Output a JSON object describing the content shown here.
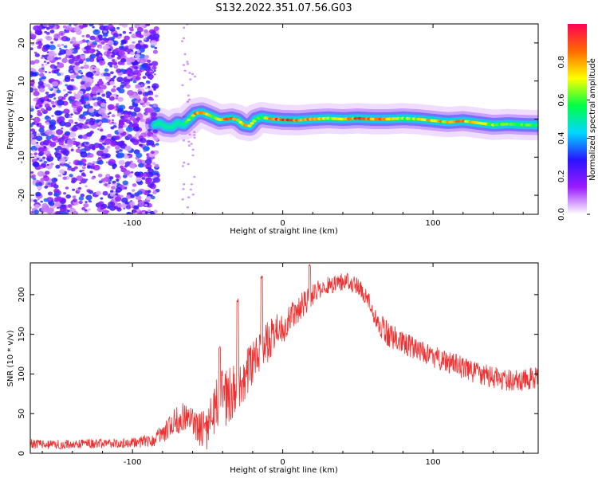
{
  "title": "S132.2022.351.07.56.G03",
  "chart_data": [
    {
      "type": "heatmap",
      "xlabel": "Height of straight line (km)",
      "ylabel": "Frequency (Hz)",
      "xlim": [
        -168,
        170
      ],
      "ylim": [
        -25,
        25
      ],
      "xticks": [
        -100,
        0,
        100
      ],
      "yticks": [
        -20,
        -10,
        0,
        10,
        20
      ],
      "colorbar": {
        "label": "Normalized spectral amplitude",
        "range": [
          0,
          1
        ],
        "ticks": [
          "0.0",
          "0.2",
          "0.4",
          "0.6",
          "0.8"
        ],
        "colors": [
          "#ffffff",
          "#9b1bff",
          "#2a14ff",
          "#00d8ff",
          "#00ff44",
          "#fcff00",
          "#ff6a00",
          "#ff0055"
        ]
      },
      "noise_region_x": [
        -168,
        -85
      ],
      "sparse_noise_x": [
        -67,
        -58
      ],
      "ridge": {
        "x": [
          -85,
          -82,
          -78,
          -74,
          -70,
          -66,
          -62,
          -58,
          -54,
          -50,
          -46,
          -42,
          -38,
          -34,
          -30,
          -26,
          -22,
          -18,
          -14,
          -10,
          -5,
          0,
          10,
          20,
          30,
          40,
          50,
          60,
          70,
          80,
          90,
          100,
          110,
          120,
          130,
          140,
          150,
          160,
          170
        ],
        "y": [
          -1.5,
          -1.0,
          -2.0,
          -2.2,
          -1.0,
          -1.5,
          0.0,
          1.5,
          1.8,
          1.2,
          0.5,
          -0.2,
          0.0,
          0.2,
          -0.2,
          -1.5,
          -1.8,
          0.0,
          0.5,
          0.2,
          0.0,
          -0.2,
          -0.3,
          0.0,
          0.2,
          0.0,
          0.2,
          0.0,
          0.0,
          0.2,
          0.0,
          -0.4,
          -0.8,
          -0.5,
          -1.0,
          -1.5,
          -1.3,
          -1.5,
          -1.6
        ],
        "amplitude": [
          0.5,
          0.55,
          0.5,
          0.55,
          0.5,
          0.55,
          0.65,
          0.85,
          0.9,
          0.8,
          0.6,
          0.75,
          0.9,
          0.85,
          0.75,
          0.9,
          0.85,
          0.7,
          0.6,
          0.8,
          0.95,
          0.95,
          0.95,
          0.85,
          0.7,
          0.75,
          0.95,
          0.9,
          0.85,
          0.7,
          0.75,
          0.85,
          0.8,
          0.85,
          0.8,
          0.7,
          0.65,
          0.7,
          0.6
        ]
      }
    },
    {
      "type": "line",
      "xlabel": "Height of straight line (km)",
      "ylabel": "SNR (10 * v/v)",
      "xlim": [
        -168,
        170
      ],
      "ylim": [
        0,
        240
      ],
      "xticks": [
        -100,
        0,
        100
      ],
      "yticks": [
        0,
        50,
        100,
        150,
        200
      ],
      "color": "#f03030",
      "series": [
        {
          "x": [
            -168,
            -150,
            -130,
            -110,
            -95,
            -85,
            -78,
            -72,
            -65,
            -60,
            -55,
            -50,
            -46,
            -42,
            -38,
            -34,
            -30,
            -26,
            -22,
            -18,
            -14,
            -10,
            -5,
            0,
            5,
            10,
            15,
            20,
            25,
            30,
            35,
            40,
            45,
            50,
            55,
            60,
            65,
            70,
            75,
            80,
            90,
            100,
            110,
            120,
            130,
            140,
            150,
            160,
            170
          ],
          "y": [
            12,
            11,
            12,
            13,
            14,
            18,
            28,
            40,
            48,
            40,
            30,
            30,
            55,
            65,
            72,
            78,
            85,
            92,
            110,
            120,
            130,
            140,
            150,
            160,
            170,
            180,
            190,
            200,
            208,
            212,
            215,
            216,
            214,
            210,
            200,
            180,
            160,
            150,
            145,
            140,
            130,
            122,
            115,
            108,
            100,
            96,
            92,
            92,
            96
          ],
          "noise": [
            6,
            6,
            6,
            6,
            7,
            10,
            14,
            18,
            20,
            20,
            22,
            26,
            34,
            36,
            38,
            36,
            34,
            30,
            28,
            28,
            26,
            26,
            24,
            22,
            20,
            18,
            16,
            14,
            12,
            12,
            12,
            12,
            12,
            12,
            12,
            14,
            16,
            16,
            16,
            15,
            14,
            14,
            14,
            14,
            14,
            14,
            14,
            14,
            14
          ]
        }
      ],
      "peaks": [
        {
          "x": -42,
          "y": 135
        },
        {
          "x": -30,
          "y": 195
        },
        {
          "x": -14,
          "y": 225
        },
        {
          "x": 18,
          "y": 238
        }
      ]
    }
  ]
}
